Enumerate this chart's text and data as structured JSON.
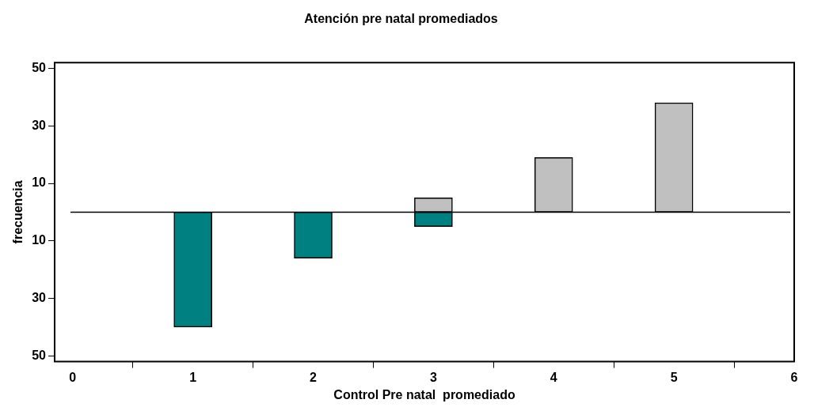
{
  "chart_data": {
    "type": "bar",
    "title": "Atención pre natal promediados",
    "xlabel": "Control Pre natal  promediado",
    "ylabel": "frecuencia",
    "x": [
      1,
      2,
      3,
      4,
      5
    ],
    "stacked": true,
    "series": [
      {
        "color": "#c0c0c0",
        "values": [
          null,
          null,
          5,
          19,
          38
        ]
      },
      {
        "color": "#008080",
        "values": [
          -40,
          -16,
          -5,
          null,
          null
        ]
      }
    ],
    "xlim": [
      -0.15,
      6
    ],
    "xticks": [
      0,
      1,
      2,
      3,
      4,
      5,
      6
    ],
    "ylim": [
      -52,
      52
    ],
    "yticks": [
      {
        "value": -50,
        "label": "50"
      },
      {
        "value": -30,
        "label": "30"
      },
      {
        "value": -10,
        "label": "10"
      },
      10,
      30,
      50
    ],
    "ref_lines": [
      {
        "axis": "y",
        "value": 0,
        "color": "#000000"
      }
    ],
    "grid": false,
    "legend": false
  }
}
